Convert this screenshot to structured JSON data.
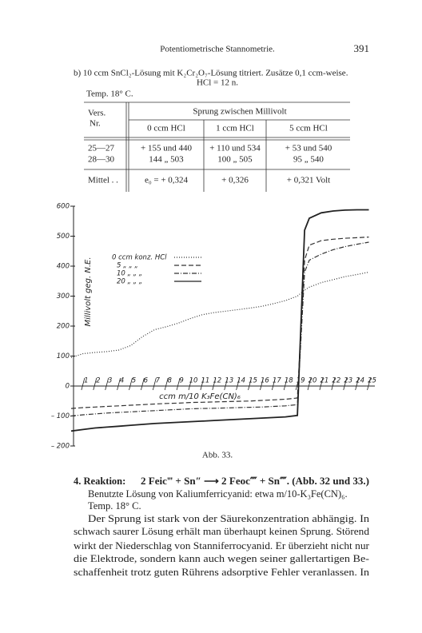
{
  "header": {
    "title": "Potentiometrische Stannometrie.",
    "page_number": "391"
  },
  "intro": {
    "line": "b) 10 ccm SnCl₂-Lösung mit K₂Cr₂O₇-Lösung titriert. Zusätze 0,1 ccm-weise.",
    "acid": "HCl = 12 n.",
    "temp": "Temp. 18° C."
  },
  "table": {
    "first_header": [
      "Vers.",
      "Nr."
    ],
    "group_header": "Sprung zwischen Millivolt",
    "subheaders": [
      "0 ccm HCl",
      "1 ccm HCl",
      "5 ccm HCl"
    ],
    "rows": [
      [
        "25—27",
        "+ 155 und 440",
        "+ 110 und 534",
        "+ 53 und 540"
      ],
      [
        "28—30",
        "144 „ 503",
        "100 „ 505",
        "95 „ 540"
      ]
    ],
    "mean_row": [
      "Mittel . .",
      "e₀ = + 0,324",
      "+ 0,326",
      "+ 0,321 Volt"
    ]
  },
  "chart_data": {
    "type": "line",
    "y_label": "Millivolt geg. N.E.",
    "x_label": "ccm m/10 K₃Fe(CN)₆",
    "x": [
      0,
      1,
      2,
      3,
      4,
      5,
      6,
      7,
      8,
      9,
      10,
      11,
      12,
      13,
      14,
      15,
      16,
      17,
      18,
      19,
      19.6,
      20,
      21,
      22,
      23,
      24,
      25
    ],
    "xlim": [
      -0.2,
      25.5
    ],
    "xticks": [
      1,
      2,
      3,
      4,
      5,
      6,
      7,
      8,
      9,
      10,
      11,
      12,
      13,
      14,
      15,
      16,
      17,
      18,
      19,
      20,
      21,
      22,
      23,
      24,
      25
    ],
    "ylim": [
      -200,
      600
    ],
    "yticks": [
      {
        "value": -200,
        "label": "– 200"
      },
      {
        "value": -100,
        "label": "– 100"
      },
      0,
      100,
      200,
      300,
      400,
      500,
      600
    ],
    "series": [
      {
        "name": "0 ccm konz. HCl",
        "color": "#333",
        "dash": "1 2",
        "values": [
          95,
          108,
          112,
          115,
          120,
          135,
          165,
          188,
          198,
          210,
          225,
          238,
          245,
          250,
          255,
          260,
          266,
          275,
          285,
          300,
          320,
          330,
          345,
          355,
          365,
          372,
          380
        ]
      },
      {
        "name": "5 „ „ „",
        "color": "#333",
        "dash": "6 3",
        "values": [
          -75,
          -72,
          -70,
          -68,
          -66,
          -64,
          -62,
          -60,
          -58,
          -57,
          -55,
          -54,
          -53,
          -52,
          -51,
          -50,
          -48,
          -46,
          -44,
          -40,
          420,
          470,
          485,
          490,
          493,
          495,
          497
        ]
      },
      {
        "name": "10 „ „ „",
        "color": "#333",
        "dash": "6 2 1 2",
        "values": [
          -100,
          -96,
          -93,
          -90,
          -88,
          -86,
          -84,
          -82,
          -80,
          -78,
          -76,
          -75,
          -74,
          -73,
          -72,
          -71,
          -70,
          -68,
          -66,
          -62,
          380,
          420,
          440,
          455,
          465,
          473,
          480
        ]
      },
      {
        "name": "20 „ „ „",
        "color": "#222",
        "dash": "none",
        "values": [
          -150,
          -145,
          -140,
          -137,
          -134,
          -131,
          -128,
          -125,
          -123,
          -121,
          -119,
          -117,
          -115,
          -113,
          -111,
          -109,
          -107,
          -105,
          -103,
          -98,
          520,
          560,
          578,
          584,
          587,
          588,
          588
        ]
      }
    ]
  },
  "caption": "Abb. 33.",
  "body": {
    "reaction_label": "4. Reaktion:",
    "reaction": "2 Feic‴ + Sn″ ⟶ 2 Feoc⁗ + Sn⁗. (Abb. 32 und 33.)",
    "lines": [
      "Benutzte Lösung von Kaliumferricyanid: etwa m/10-K₃Fe(CN)₆.",
      "Temp. 18° C.",
      "Der Sprung ist stark von der Säurekonzentration abhängig. In",
      "schwach saurer Lösung erhält man überhaupt keinen Sprung. Störend",
      "wirkt der Niederschlag von Stanniferrocyanid. Er überzieht nicht nur",
      "die Elektrode, sondern kann auch wegen seiner gallertartigen Be-",
      "schaffenheit trotz guten Rührens adsorptive Fehler veranlassen. In"
    ]
  }
}
